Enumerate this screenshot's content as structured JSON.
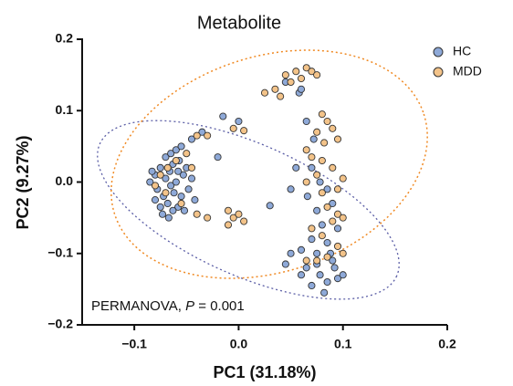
{
  "chart_data": {
    "type": "scatter",
    "title": "Metabolite",
    "x_label": "PC1 (31.18%)",
    "y_label": "PC2 (9.27%)",
    "annotation": [
      "PERMANOVA, ",
      "P",
      " = 0.001"
    ],
    "xlim": [
      -0.15,
      0.2
    ],
    "xticks": [
      {
        "value": -0.1,
        "label": "−0.1"
      },
      {
        "value": 0,
        "label": "0.0"
      },
      0.1,
      0.2
    ],
    "ylim": [
      -0.2,
      0.2
    ],
    "yticks": [
      {
        "value": -0.2,
        "label": "−0.2"
      },
      {
        "value": -0.1,
        "label": "−0.1"
      },
      {
        "value": 0,
        "label": "0.0"
      },
      0.1,
      0.2
    ],
    "series": [
      {
        "name": "HC",
        "color": "#8ea9d8",
        "x": [
          -0.085,
          -0.08,
          -0.078,
          -0.075,
          -0.072,
          -0.07,
          -0.068,
          -0.066,
          -0.065,
          -0.063,
          -0.062,
          -0.06,
          -0.058,
          -0.057,
          -0.055,
          -0.053,
          -0.052,
          -0.05,
          -0.048,
          -0.075,
          -0.08,
          -0.07,
          -0.065,
          -0.06,
          -0.055,
          -0.045,
          -0.042,
          -0.073,
          -0.067,
          -0.083,
          -0.058,
          -0.063,
          -0.045,
          -0.035,
          -0.015,
          -0.02,
          0.0,
          0.03,
          0.05,
          0.055,
          0.045,
          0.058,
          0.06,
          0.065,
          0.072,
          0.07,
          0.078,
          0.085,
          0.066,
          0.075,
          0.09,
          0.08,
          0.095,
          0.07,
          0.085,
          0.06,
          0.075,
          0.05,
          0.09,
          0.065,
          0.078,
          0.085,
          0.07,
          0.095,
          0.082,
          0.092,
          0.06,
          0.045,
          0.1,
          0.075,
          0.088
        ],
        "values": [
          0.0,
          0.01,
          -0.01,
          0.02,
          -0.02,
          0.005,
          -0.03,
          0.015,
          -0.005,
          0.025,
          -0.015,
          0.0,
          -0.035,
          0.03,
          -0.02,
          0.01,
          -0.04,
          0.02,
          -0.01,
          -0.035,
          -0.025,
          0.035,
          0.04,
          0.045,
          0.05,
          0.005,
          -0.025,
          -0.045,
          -0.05,
          0.015,
          0.015,
          -0.04,
          0.06,
          0.07,
          0.092,
          0.035,
          0.085,
          -0.033,
          -0.01,
          0.02,
          0.14,
          0.125,
          0.13,
          0.085,
          0.06,
          0.02,
          0.0,
          -0.01,
          -0.02,
          -0.04,
          -0.03,
          -0.06,
          -0.065,
          -0.08,
          -0.085,
          -0.095,
          -0.1,
          -0.1,
          -0.11,
          -0.12,
          -0.13,
          -0.14,
          -0.145,
          -0.135,
          -0.155,
          -0.12,
          -0.13,
          -0.115,
          -0.13,
          -0.115,
          -0.1
        ]
      },
      {
        "name": "MDD",
        "color": "#f3c389",
        "x": [
          0.025,
          0.035,
          0.045,
          0.055,
          0.065,
          0.07,
          0.06,
          0.05,
          0.075,
          0.04,
          -0.04,
          -0.03,
          -0.005,
          0.005,
          0.08,
          0.085,
          0.09,
          0.095,
          0.075,
          0.082,
          -0.075,
          -0.07,
          -0.06,
          -0.05,
          -0.055,
          -0.068,
          -0.045,
          -0.08,
          -0.04,
          -0.03,
          -0.01,
          -0.005,
          0.0,
          -0.01,
          0.005,
          0.065,
          0.07,
          0.08,
          0.09,
          0.075,
          0.1,
          0.095,
          0.08,
          0.065,
          0.085,
          0.095,
          0.1,
          0.09,
          0.07,
          0.08,
          0.095,
          0.085,
          0.075,
          0.1,
          0.065
        ],
        "values": [
          0.125,
          0.13,
          0.15,
          0.155,
          0.16,
          0.155,
          0.145,
          0.14,
          0.15,
          0.12,
          0.065,
          0.065,
          0.075,
          0.072,
          0.095,
          0.085,
          0.075,
          0.06,
          0.07,
          0.055,
          0.01,
          -0.015,
          0.03,
          0.04,
          -0.03,
          0.02,
          0.02,
          -0.005,
          -0.045,
          -0.05,
          -0.04,
          -0.05,
          -0.045,
          -0.06,
          -0.055,
          0.045,
          0.035,
          0.03,
          0.02,
          0.01,
          0.005,
          -0.01,
          -0.015,
          0.0,
          -0.035,
          -0.045,
          -0.05,
          -0.055,
          -0.065,
          -0.075,
          -0.09,
          -0.105,
          -0.11,
          -0.1,
          -0.11
        ]
      }
    ],
    "legend": "top-right"
  }
}
